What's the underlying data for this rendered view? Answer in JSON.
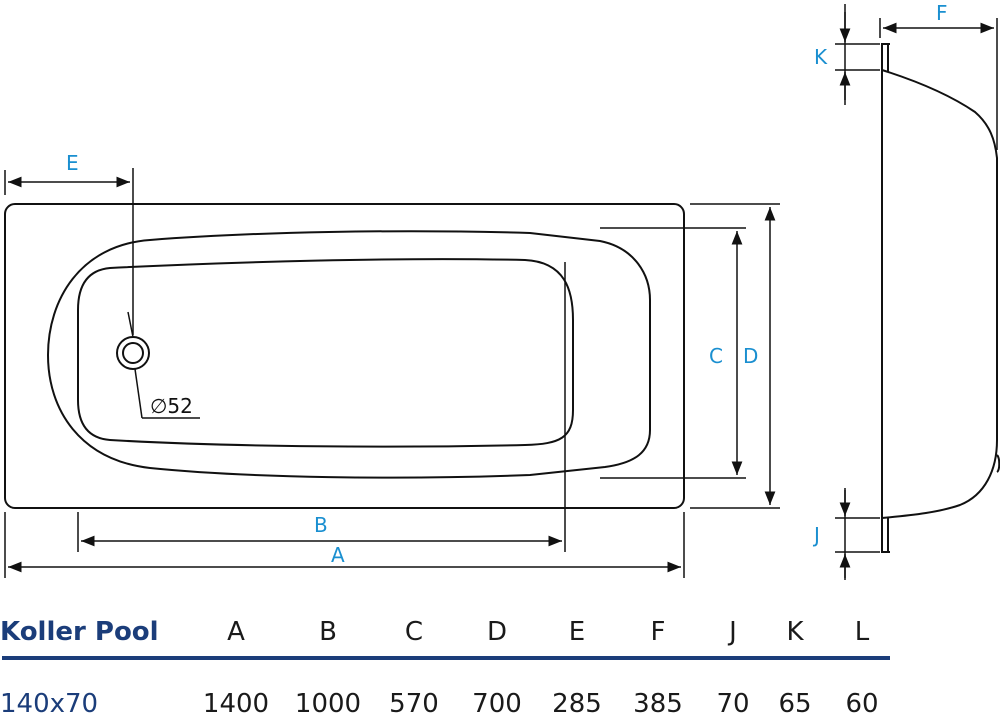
{
  "drawing": {
    "dimension_labels": {
      "a": "A",
      "b": "B",
      "c": "C",
      "d": "D",
      "e": "E",
      "f": "F",
      "j": "J",
      "k": "K"
    },
    "drain_label": "∅52",
    "colors": {
      "outline": "#111111",
      "dimension_text": "#1a8fd0"
    }
  },
  "spec_table": {
    "model_header": "Koller Pool",
    "columns": [
      "A",
      "B",
      "C",
      "D",
      "E",
      "F",
      "J",
      "K",
      "L"
    ],
    "rows": [
      {
        "model": "140x70",
        "values": [
          "1400",
          "1000",
          "570",
          "700",
          "285",
          "385",
          "70",
          "65",
          "60"
        ]
      }
    ],
    "colors": {
      "brand": "#1b3d7a",
      "rule": "#1b3d7a"
    }
  }
}
